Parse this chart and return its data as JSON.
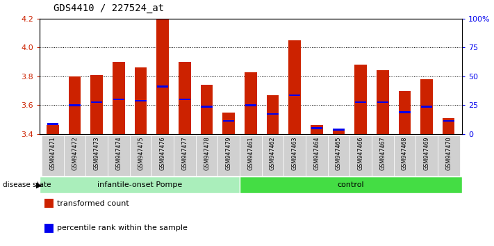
{
  "title": "GDS4410 / 227524_at",
  "samples": [
    "GSM947471",
    "GSM947472",
    "GSM947473",
    "GSM947474",
    "GSM947475",
    "GSM947476",
    "GSM947477",
    "GSM947478",
    "GSM947479",
    "GSM947461",
    "GSM947462",
    "GSM947463",
    "GSM947464",
    "GSM947465",
    "GSM947466",
    "GSM947467",
    "GSM947468",
    "GSM947469",
    "GSM947470"
  ],
  "transformed_count": [
    3.46,
    3.8,
    3.81,
    3.9,
    3.86,
    4.2,
    3.9,
    3.74,
    3.55,
    3.83,
    3.67,
    4.05,
    3.46,
    3.44,
    3.88,
    3.84,
    3.7,
    3.78,
    3.51
  ],
  "percentile_rank": [
    3.47,
    3.6,
    3.62,
    3.64,
    3.63,
    3.73,
    3.64,
    3.59,
    3.49,
    3.6,
    3.54,
    3.67,
    3.44,
    3.43,
    3.62,
    3.62,
    3.55,
    3.59,
    3.49
  ],
  "groups": [
    "infantile-onset Pompe",
    "infantile-onset Pompe",
    "infantile-onset Pompe",
    "infantile-onset Pompe",
    "infantile-onset Pompe",
    "infantile-onset Pompe",
    "infantile-onset Pompe",
    "infantile-onset Pompe",
    "infantile-onset Pompe",
    "control",
    "control",
    "control",
    "control",
    "control",
    "control",
    "control",
    "control",
    "control",
    "control"
  ],
  "pompe_color": "#AAEEBB",
  "control_color": "#44DD44",
  "bar_color": "#CC2200",
  "marker_color": "#0000EE",
  "ymin": 3.4,
  "ymax": 4.2,
  "yticks": [
    3.4,
    3.6,
    3.8,
    4.0,
    4.2
  ],
  "right_ytick_pcts": [
    0,
    25,
    50,
    75,
    100
  ],
  "right_yticklabels": [
    "0",
    "25",
    "50",
    "75",
    "100%"
  ],
  "left_ycolor": "#CC2200",
  "right_ycolor": "#0000EE",
  "pompe_count": 9,
  "control_count": 10
}
